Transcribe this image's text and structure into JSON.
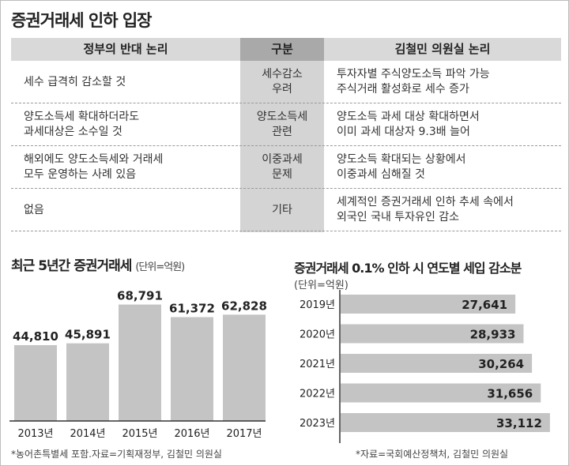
{
  "title": "증권거래세 인하 입장",
  "table": {
    "headers": [
      "정부의 반대 논리",
      "구분",
      "김철민 의원실 논리"
    ],
    "rows": [
      {
        "left": [
          "세수 급격히 감소할 것"
        ],
        "center": [
          "세수감소",
          "우려"
        ],
        "right": [
          "투자자별 주식양도소득 파악 가능",
          "주식거래 활성화로 세수 증가"
        ]
      },
      {
        "left": [
          "양도소득세 확대하더라도",
          "과세대상은 소수일 것"
        ],
        "center": [
          "양도소득세",
          "관련"
        ],
        "right": [
          "양도소득 과세 대상 확대하면서",
          "이미 과세 대상자 9.3배 늘어"
        ]
      },
      {
        "left": [
          "해외에도 양도소득세와 거래세",
          "모두 운영하는 사례 있음"
        ],
        "center": [
          "이중과세",
          "문제"
        ],
        "right": [
          "양도소득 확대되는 상황에서",
          "이중과세 심해질 것"
        ]
      },
      {
        "left": [
          "없음"
        ],
        "center": [
          "기타"
        ],
        "right": [
          "세계적인 증권거래세 인하 추세 속에서",
          "외국인 국내 투자유인 감소"
        ]
      }
    ]
  },
  "chart_left_title": "최근 5년간 증권거래세",
  "chart_left_unit": "(단위=억원)",
  "chart_right_title": "증권거래세 0.1% 인하 시 연도별 세입 감소분",
  "chart_right_unit": "(단위=억원)",
  "source_left": "*농어촌특별세 포함.자료=기획재정부, 김철민 의원실",
  "source_right": "*자료=국회예산정책처, 김철민 의원실",
  "colors": {
    "bar": "#c4c4c4",
    "axis": "#333333",
    "text": "#222222"
  },
  "chart_data": [
    {
      "type": "bar",
      "categories": [
        "2013년",
        "2014년",
        "2015년",
        "2016년",
        "2017년"
      ],
      "values": [
        44810,
        45891,
        68791,
        61372,
        62828
      ],
      "value_labels": [
        "44,810",
        "45,891",
        "68,791",
        "61,372",
        "62,828"
      ],
      "title": "최근 5년간 증권거래세",
      "ylabel": "(단위=억원)",
      "ylim": [
        0,
        70000
      ],
      "grid": false,
      "orientation": "vertical"
    },
    {
      "type": "bar",
      "categories": [
        "2019년",
        "2020년",
        "2021년",
        "2022년",
        "2023년"
      ],
      "values": [
        27641,
        28933,
        30264,
        31656,
        33112
      ],
      "value_labels": [
        "27,641",
        "28,933",
        "30,264",
        "31,656",
        "33,112"
      ],
      "title": "증권거래세 0.1% 인하 시 연도별 세입 감소분",
      "xlabel": "(단위=억원)",
      "xlim": [
        0,
        34000
      ],
      "grid": false,
      "orientation": "horizontal"
    }
  ]
}
